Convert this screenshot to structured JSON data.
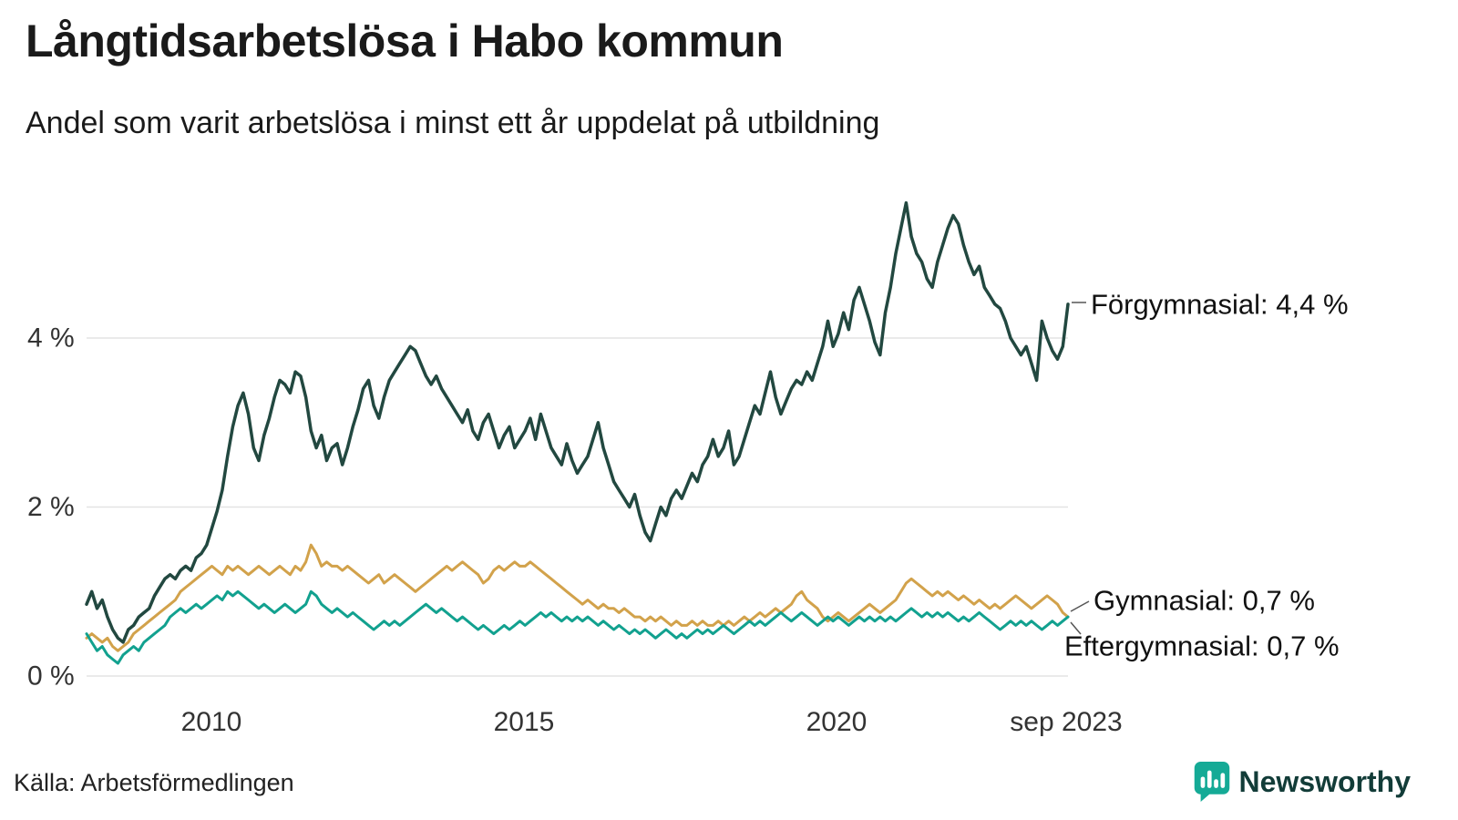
{
  "header": {
    "title": "Långtidsarbetslösa i Habo kommun",
    "subtitle": "Andel som varit arbetslösa i minst ett år uppdelat på utbildning"
  },
  "footer": {
    "source": "Källa: Arbetsförmedlingen",
    "brand": "Newsworthy"
  },
  "colors": {
    "forgymnasial": "#224840",
    "gymnasial": "#d2a24b",
    "eftergymnasial": "#12a18f",
    "grid": "#e3e3e3",
    "brand_teal": "#15aa96",
    "brand_text": "#123c38"
  },
  "chart_data": {
    "type": "line",
    "title": "Långtidsarbetslösa i Habo kommun",
    "subtitle": "Andel som varit arbetslösa i minst ett år uppdelat på utbildning",
    "x_start": "2008-01",
    "x_end": "2023-09",
    "frequency": "monthly",
    "x_tick_labels": [
      "2010",
      "2015",
      "2020",
      "sep 2023"
    ],
    "y_tick_labels": [
      "0 %",
      "2 %",
      "4 %"
    ],
    "y_ticks": [
      0,
      2,
      4
    ],
    "ylim": [
      0,
      5.8
    ],
    "grid": "horizontal",
    "legend_position": "right-end-labels",
    "series": [
      {
        "id": "forgymnasial",
        "name": "Förgymnasial",
        "end_label": "Förgymnasial: 4,4 %",
        "end_value": 4.4,
        "color": "#224840",
        "stroke_width": 3.5,
        "values": [
          0.85,
          1.0,
          0.8,
          0.9,
          0.7,
          0.55,
          0.45,
          0.4,
          0.55,
          0.6,
          0.7,
          0.75,
          0.8,
          0.95,
          1.05,
          1.15,
          1.2,
          1.15,
          1.25,
          1.3,
          1.25,
          1.4,
          1.45,
          1.55,
          1.75,
          1.95,
          2.2,
          2.6,
          2.95,
          3.2,
          3.35,
          3.1,
          2.7,
          2.55,
          2.85,
          3.05,
          3.3,
          3.5,
          3.45,
          3.35,
          3.6,
          3.55,
          3.3,
          2.9,
          2.7,
          2.85,
          2.55,
          2.7,
          2.75,
          2.5,
          2.7,
          2.95,
          3.15,
          3.4,
          3.5,
          3.2,
          3.05,
          3.3,
          3.5,
          3.6,
          3.7,
          3.8,
          3.9,
          3.85,
          3.7,
          3.55,
          3.45,
          3.55,
          3.4,
          3.3,
          3.2,
          3.1,
          3.0,
          3.15,
          2.9,
          2.8,
          3.0,
          3.1,
          2.9,
          2.7,
          2.85,
          2.95,
          2.7,
          2.8,
          2.9,
          3.05,
          2.8,
          3.1,
          2.9,
          2.7,
          2.6,
          2.5,
          2.75,
          2.55,
          2.4,
          2.5,
          2.6,
          2.8,
          3.0,
          2.7,
          2.5,
          2.3,
          2.2,
          2.1,
          2.0,
          2.15,
          1.9,
          1.7,
          1.6,
          1.8,
          2.0,
          1.9,
          2.1,
          2.2,
          2.1,
          2.25,
          2.4,
          2.3,
          2.5,
          2.6,
          2.8,
          2.6,
          2.7,
          2.9,
          2.5,
          2.6,
          2.8,
          3.0,
          3.2,
          3.1,
          3.35,
          3.6,
          3.3,
          3.1,
          3.25,
          3.4,
          3.5,
          3.45,
          3.6,
          3.5,
          3.7,
          3.9,
          4.2,
          3.9,
          4.05,
          4.3,
          4.1,
          4.45,
          4.6,
          4.4,
          4.2,
          3.95,
          3.8,
          4.3,
          4.6,
          5.0,
          5.3,
          5.6,
          5.2,
          5.0,
          4.9,
          4.7,
          4.6,
          4.9,
          5.1,
          5.3,
          5.45,
          5.35,
          5.1,
          4.9,
          4.75,
          4.85,
          4.6,
          4.5,
          4.4,
          4.35,
          4.2,
          4.0,
          3.9,
          3.8,
          3.9,
          3.7,
          3.5,
          4.2,
          4.0,
          3.85,
          3.75,
          3.9,
          4.4
        ]
      },
      {
        "id": "gymnasial",
        "name": "Gymnasial",
        "end_label": "Gymnasial: 0,7 %",
        "end_value": 0.7,
        "color": "#d2a24b",
        "stroke_width": 3,
        "values": [
          0.45,
          0.5,
          0.45,
          0.4,
          0.45,
          0.35,
          0.3,
          0.35,
          0.4,
          0.5,
          0.55,
          0.6,
          0.65,
          0.7,
          0.75,
          0.8,
          0.85,
          0.9,
          1.0,
          1.05,
          1.1,
          1.15,
          1.2,
          1.25,
          1.3,
          1.25,
          1.2,
          1.3,
          1.25,
          1.3,
          1.25,
          1.2,
          1.25,
          1.3,
          1.25,
          1.2,
          1.25,
          1.3,
          1.25,
          1.2,
          1.3,
          1.25,
          1.35,
          1.55,
          1.45,
          1.3,
          1.35,
          1.3,
          1.3,
          1.25,
          1.3,
          1.25,
          1.2,
          1.15,
          1.1,
          1.15,
          1.2,
          1.1,
          1.15,
          1.2,
          1.15,
          1.1,
          1.05,
          1.0,
          1.05,
          1.1,
          1.15,
          1.2,
          1.25,
          1.3,
          1.25,
          1.3,
          1.35,
          1.3,
          1.25,
          1.2,
          1.1,
          1.15,
          1.25,
          1.3,
          1.25,
          1.3,
          1.35,
          1.3,
          1.3,
          1.35,
          1.3,
          1.25,
          1.2,
          1.15,
          1.1,
          1.05,
          1.0,
          0.95,
          0.9,
          0.85,
          0.9,
          0.85,
          0.8,
          0.85,
          0.8,
          0.8,
          0.75,
          0.8,
          0.75,
          0.7,
          0.7,
          0.65,
          0.7,
          0.65,
          0.7,
          0.65,
          0.6,
          0.65,
          0.6,
          0.6,
          0.65,
          0.6,
          0.65,
          0.6,
          0.6,
          0.65,
          0.6,
          0.65,
          0.6,
          0.65,
          0.7,
          0.65,
          0.7,
          0.75,
          0.7,
          0.75,
          0.8,
          0.75,
          0.8,
          0.85,
          0.95,
          1.0,
          0.9,
          0.85,
          0.8,
          0.7,
          0.65,
          0.7,
          0.75,
          0.7,
          0.65,
          0.7,
          0.75,
          0.8,
          0.85,
          0.8,
          0.75,
          0.8,
          0.85,
          0.9,
          1.0,
          1.1,
          1.15,
          1.1,
          1.05,
          1.0,
          0.95,
          1.0,
          0.95,
          1.0,
          0.95,
          0.9,
          0.95,
          0.9,
          0.85,
          0.9,
          0.85,
          0.8,
          0.85,
          0.8,
          0.85,
          0.9,
          0.95,
          0.9,
          0.85,
          0.8,
          0.85,
          0.9,
          0.95,
          0.9,
          0.85,
          0.75,
          0.7
        ]
      },
      {
        "id": "eftergymnasial",
        "name": "Eftergymnasial",
        "end_label": "Eftergymnasial: 0,7 %",
        "end_value": 0.7,
        "color": "#12a18f",
        "stroke_width": 3,
        "values": [
          0.5,
          0.4,
          0.3,
          0.35,
          0.25,
          0.2,
          0.15,
          0.25,
          0.3,
          0.35,
          0.3,
          0.4,
          0.45,
          0.5,
          0.55,
          0.6,
          0.7,
          0.75,
          0.8,
          0.75,
          0.8,
          0.85,
          0.8,
          0.85,
          0.9,
          0.95,
          0.9,
          1.0,
          0.95,
          1.0,
          0.95,
          0.9,
          0.85,
          0.8,
          0.85,
          0.8,
          0.75,
          0.8,
          0.85,
          0.8,
          0.75,
          0.8,
          0.85,
          1.0,
          0.95,
          0.85,
          0.8,
          0.75,
          0.8,
          0.75,
          0.7,
          0.75,
          0.7,
          0.65,
          0.6,
          0.55,
          0.6,
          0.65,
          0.6,
          0.65,
          0.6,
          0.65,
          0.7,
          0.75,
          0.8,
          0.85,
          0.8,
          0.75,
          0.8,
          0.75,
          0.7,
          0.65,
          0.7,
          0.65,
          0.6,
          0.55,
          0.6,
          0.55,
          0.5,
          0.55,
          0.6,
          0.55,
          0.6,
          0.65,
          0.6,
          0.65,
          0.7,
          0.75,
          0.7,
          0.75,
          0.7,
          0.65,
          0.7,
          0.65,
          0.7,
          0.65,
          0.7,
          0.65,
          0.6,
          0.65,
          0.6,
          0.55,
          0.6,
          0.55,
          0.5,
          0.55,
          0.5,
          0.55,
          0.5,
          0.45,
          0.5,
          0.55,
          0.5,
          0.45,
          0.5,
          0.45,
          0.5,
          0.55,
          0.5,
          0.55,
          0.5,
          0.55,
          0.6,
          0.55,
          0.5,
          0.55,
          0.6,
          0.65,
          0.6,
          0.65,
          0.6,
          0.65,
          0.7,
          0.75,
          0.7,
          0.65,
          0.7,
          0.75,
          0.7,
          0.65,
          0.6,
          0.65,
          0.7,
          0.65,
          0.7,
          0.65,
          0.6,
          0.65,
          0.7,
          0.65,
          0.7,
          0.65,
          0.7,
          0.65,
          0.7,
          0.65,
          0.7,
          0.75,
          0.8,
          0.75,
          0.7,
          0.75,
          0.7,
          0.75,
          0.7,
          0.75,
          0.7,
          0.65,
          0.7,
          0.65,
          0.7,
          0.75,
          0.7,
          0.65,
          0.6,
          0.55,
          0.6,
          0.65,
          0.6,
          0.65,
          0.6,
          0.65,
          0.6,
          0.55,
          0.6,
          0.65,
          0.6,
          0.65,
          0.7
        ]
      }
    ]
  }
}
